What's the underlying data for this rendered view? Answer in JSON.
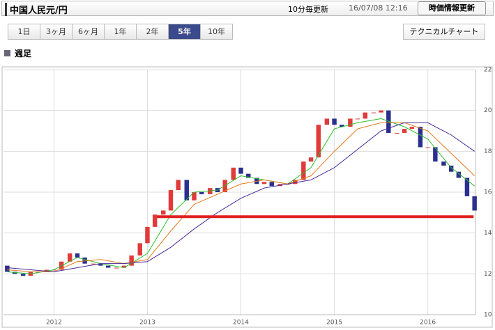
{
  "header": {
    "title": "中国人民元/円",
    "update_interval": "10分毎更新",
    "timestamp": "16/07/08 12:16",
    "refresh_button": "時価情報更新"
  },
  "tabs": [
    "1日",
    "3ヶ月",
    "6ヶ月",
    "1年",
    "2年",
    "5年",
    "10年"
  ],
  "active_tab_index": 5,
  "technical_button": "テクニカルチャート",
  "period_label": "週足",
  "chart_data": {
    "type": "candlestick",
    "x": [
      2011.5,
      2011.58,
      2011.67,
      2011.75,
      2011.83,
      2011.92,
      2012,
      2012.08,
      2012.17,
      2012.25,
      2012.33,
      2012.42,
      2012.5,
      2012.58,
      2012.67,
      2012.75,
      2012.83,
      2012.92,
      2013,
      2013.08,
      2013.17,
      2013.25,
      2013.33,
      2013.42,
      2013.5,
      2013.58,
      2013.67,
      2013.75,
      2013.83,
      2013.92,
      2014,
      2014.08,
      2014.17,
      2014.25,
      2014.33,
      2014.42,
      2014.5,
      2014.58,
      2014.67,
      2014.75,
      2014.83,
      2014.92,
      2015,
      2015.08,
      2015.17,
      2015.25,
      2015.33,
      2015.42,
      2015.5,
      2015.58,
      2015.67,
      2015.75,
      2015.83,
      2015.92,
      2016,
      2016.08,
      2016.17,
      2016.25,
      2016.33,
      2016.42,
      2016.5
    ],
    "open": [
      12.4,
      12.1,
      12.0,
      11.9,
      12.1,
      12.1,
      12.2,
      12.2,
      12.6,
      13.0,
      12.8,
      12.5,
      12.5,
      12.4,
      12.3,
      12.3,
      12.4,
      12.9,
      13.5,
      14.3,
      14.9,
      15.1,
      16.1,
      16.6,
      15.6,
      16.0,
      15.9,
      16.2,
      16.0,
      16.6,
      17.2,
      16.9,
      16.7,
      16.4,
      16.5,
      16.3,
      16.4,
      16.4,
      16.6,
      17.5,
      17.7,
      19.3,
      19.6,
      19.3,
      19.2,
      19.6,
      19.6,
      19.9,
      19.9,
      20.0,
      18.9,
      18.9,
      19.1,
      19.2,
      18.2,
      18.2,
      17.5,
      17.3,
      17.0,
      16.7,
      15.8
    ],
    "close": [
      12.1,
      12.0,
      11.9,
      12.1,
      12.1,
      12.2,
      12.2,
      12.6,
      13.0,
      12.8,
      12.5,
      12.5,
      12.4,
      12.3,
      12.3,
      12.4,
      12.9,
      13.5,
      14.3,
      14.9,
      15.1,
      16.1,
      16.6,
      15.6,
      16.0,
      15.9,
      16.2,
      16.0,
      16.6,
      17.2,
      16.9,
      16.7,
      16.4,
      16.5,
      16.3,
      16.4,
      16.4,
      16.6,
      17.5,
      17.7,
      19.3,
      19.6,
      19.3,
      19.2,
      19.6,
      19.6,
      19.9,
      19.9,
      20.0,
      18.9,
      18.9,
      19.1,
      19.2,
      18.2,
      18.2,
      17.5,
      17.3,
      17.0,
      16.7,
      15.8,
      15.1
    ],
    "up_color": "#e03a3a",
    "down_color": "#2b2f8f",
    "series": [
      {
        "color": "#2bbf2b",
        "x": [
          2011.5,
          2011.75,
          2012,
          2012.25,
          2012.5,
          2012.75,
          2013,
          2013.25,
          2013.5,
          2013.75,
          2014,
          2014.25,
          2014.5,
          2014.75,
          2015,
          2015.25,
          2015.5,
          2015.75,
          2016,
          2016.25,
          2016.5
        ],
        "values": [
          12.1,
          12.0,
          12.2,
          12.8,
          12.5,
          12.3,
          13.0,
          14.9,
          16.0,
          16.1,
          16.8,
          16.6,
          16.4,
          17.2,
          19.1,
          19.4,
          19.6,
          19.2,
          18.6,
          17.2,
          16.3
        ]
      },
      {
        "color": "#e07a1a",
        "x": [
          2011.5,
          2011.75,
          2012,
          2012.25,
          2012.5,
          2012.75,
          2013,
          2013.25,
          2013.5,
          2013.75,
          2014,
          2014.25,
          2014.5,
          2014.75,
          2015,
          2015.25,
          2015.5,
          2015.75,
          2016,
          2016.25,
          2016.5
        ],
        "values": [
          12.2,
          12.1,
          12.1,
          12.6,
          12.7,
          12.5,
          12.7,
          14.1,
          15.4,
          15.9,
          16.4,
          16.6,
          16.4,
          16.8,
          18.0,
          19.1,
          19.4,
          19.4,
          19.0,
          17.9,
          16.8
        ]
      },
      {
        "color": "#4a2a9a",
        "x": [
          2011.5,
          2011.75,
          2012,
          2012.25,
          2012.5,
          2012.75,
          2013,
          2013.25,
          2013.5,
          2013.75,
          2014,
          2014.25,
          2014.5,
          2014.75,
          2015,
          2015.25,
          2015.5,
          2015.75,
          2016,
          2016.25,
          2016.5
        ],
        "values": [
          12.3,
          12.2,
          12.1,
          12.3,
          12.5,
          12.5,
          12.6,
          13.3,
          14.2,
          15.0,
          15.7,
          16.2,
          16.4,
          16.6,
          17.2,
          18.1,
          19.0,
          19.4,
          19.4,
          18.8,
          18.0
        ]
      }
    ],
    "support_line": {
      "value": 14.8,
      "x_start": 2013.1,
      "x_end": 2016.49,
      "color": "#e02020"
    },
    "xlim": [
      2011.46,
      2016.51
    ],
    "xticks": [
      2012,
      2013,
      2014,
      2015,
      2016
    ],
    "ylim": [
      10,
      22
    ],
    "yticks": [
      10,
      12,
      14,
      16,
      18,
      20,
      22
    ],
    "grid": true
  }
}
